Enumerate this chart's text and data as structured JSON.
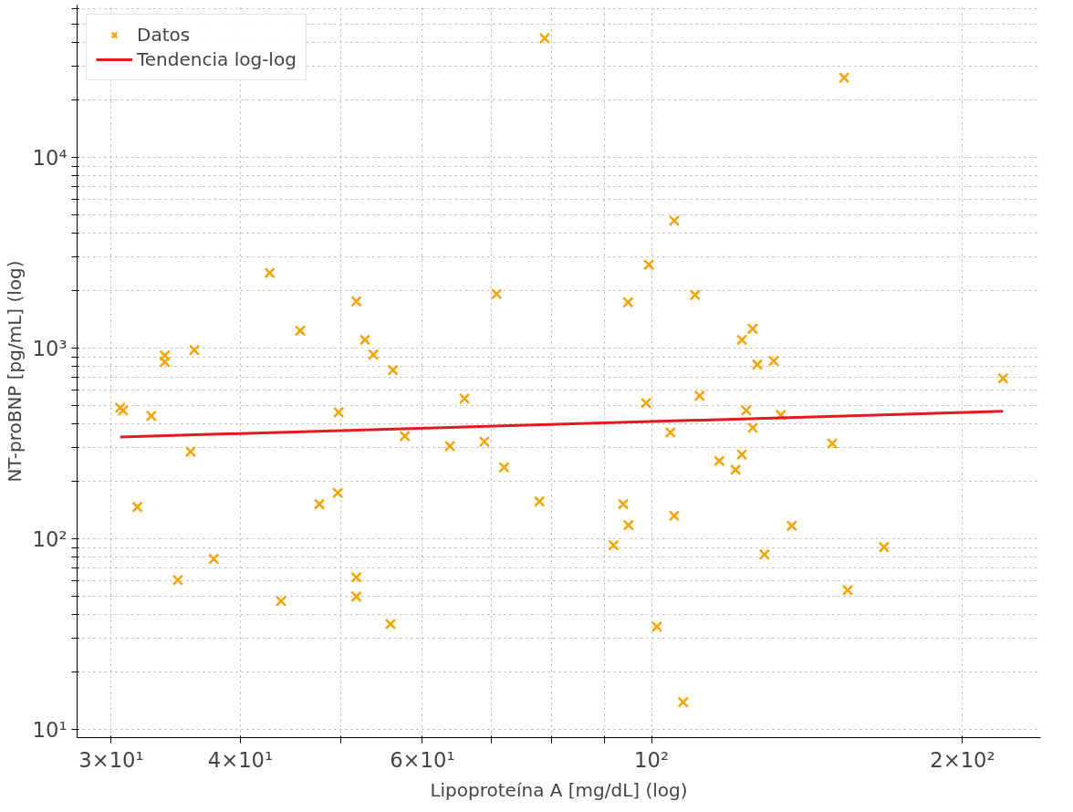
{
  "chart_data": {
    "type": "scatter",
    "xlabel": "Lipoproteína A [mg/dL] (log)",
    "ylabel": "NT-proBNP [pg/mL] (log)",
    "log": "xy",
    "grid": true,
    "legend": "top left",
    "xlim": [
      27.8,
      238
    ],
    "ylim": [
      9.06,
      63000
    ],
    "xticks": [
      {
        "value": 30,
        "label": "3×10¹"
      },
      {
        "value": 40,
        "label": "4×10¹"
      },
      {
        "value": 50,
        "label": null
      },
      {
        "value": 60,
        "label": "6×10¹"
      },
      {
        "value": 70,
        "label": null
      },
      {
        "value": 80,
        "label": null
      },
      {
        "value": 90,
        "label": null
      },
      {
        "value": 100,
        "label": "10²"
      },
      {
        "value": 200,
        "label": "2×10²"
      }
    ],
    "yticks": [
      {
        "value": 10,
        "label": "10¹"
      },
      {
        "value": 20,
        "label": null
      },
      {
        "value": 30,
        "label": null
      },
      {
        "value": 40,
        "label": null
      },
      {
        "value": 50,
        "label": null
      },
      {
        "value": 60,
        "label": null
      },
      {
        "value": 70,
        "label": null
      },
      {
        "value": 80,
        "label": null
      },
      {
        "value": 90,
        "label": null
      },
      {
        "value": 100,
        "label": "10²"
      },
      {
        "value": 200,
        "label": null
      },
      {
        "value": 300,
        "label": null
      },
      {
        "value": 400,
        "label": null
      },
      {
        "value": 500,
        "label": null
      },
      {
        "value": 600,
        "label": null
      },
      {
        "value": 700,
        "label": null
      },
      {
        "value": 800,
        "label": null
      },
      {
        "value": 900,
        "label": null
      },
      {
        "value": 1000,
        "label": "10³"
      },
      {
        "value": 2000,
        "label": null
      },
      {
        "value": 3000,
        "label": null
      },
      {
        "value": 4000,
        "label": null
      },
      {
        "value": 5000,
        "label": null
      },
      {
        "value": 6000,
        "label": null
      },
      {
        "value": 7000,
        "label": null
      },
      {
        "value": 8000,
        "label": null
      },
      {
        "value": 9000,
        "label": null
      },
      {
        "value": 10000,
        "label": "10⁴"
      },
      {
        "value": 20000,
        "label": null
      },
      {
        "value": 30000,
        "label": null
      },
      {
        "value": 40000,
        "label": null
      },
      {
        "value": 50000,
        "label": null
      },
      {
        "value": 60000,
        "label": null
      }
    ],
    "series": [
      {
        "name": "Datos",
        "marker": "cross",
        "color": "#f5a300",
        "x": [
          30.6,
          30.8,
          31.8,
          32.8,
          33.8,
          33.8,
          36.1,
          35.8,
          34.8,
          37.7,
          42.7,
          43.8,
          45.7,
          47.7,
          49.7,
          49.8,
          51.8,
          52.8,
          53.8,
          51.8,
          51.8,
          56.2,
          55.9,
          57.7,
          63.8,
          65.9,
          68.9,
          70.8,
          72.0,
          78.8,
          77.9,
          91.9,
          93.9,
          94.9,
          95.0,
          98.8,
          99.4,
          101.2,
          104.3,
          105.2,
          105.2,
          107.3,
          110.2,
          111.3,
          116.3,
          120.6,
          122.3,
          122.3,
          123.5,
          125.3,
          125.3,
          126.6,
          128.6,
          131.3,
          133.4,
          136.7,
          149.6,
          153.6,
          154.8,
          167.9,
          218.9
        ],
        "values": [
          487,
          471,
          147,
          441,
          915,
          847,
          978,
          286,
          60.8,
          78.4,
          2479,
          47.1,
          1234,
          152,
          174,
          461,
          1758,
          1105,
          925,
          62.8,
          49.8,
          767,
          35.7,
          345,
          306,
          544,
          323,
          1922,
          237,
          42170,
          157,
          92.5,
          152,
          1738,
          118,
          515,
          2738,
          34.6,
          361,
          4660,
          132,
          13.9,
          1900,
          562,
          256,
          230,
          277,
          1105,
          471,
          1262,
          382,
          819,
          82.8,
          856,
          446,
          117,
          316,
          26200,
          53.8,
          90.5,
          694
        ]
      },
      {
        "name": "Tendencia log-log",
        "type": "line",
        "line_style": "solid",
        "color": "#e41a1c",
        "x": [
          30.6,
          218.9
        ],
        "values": [
          342,
          466
        ]
      }
    ]
  }
}
